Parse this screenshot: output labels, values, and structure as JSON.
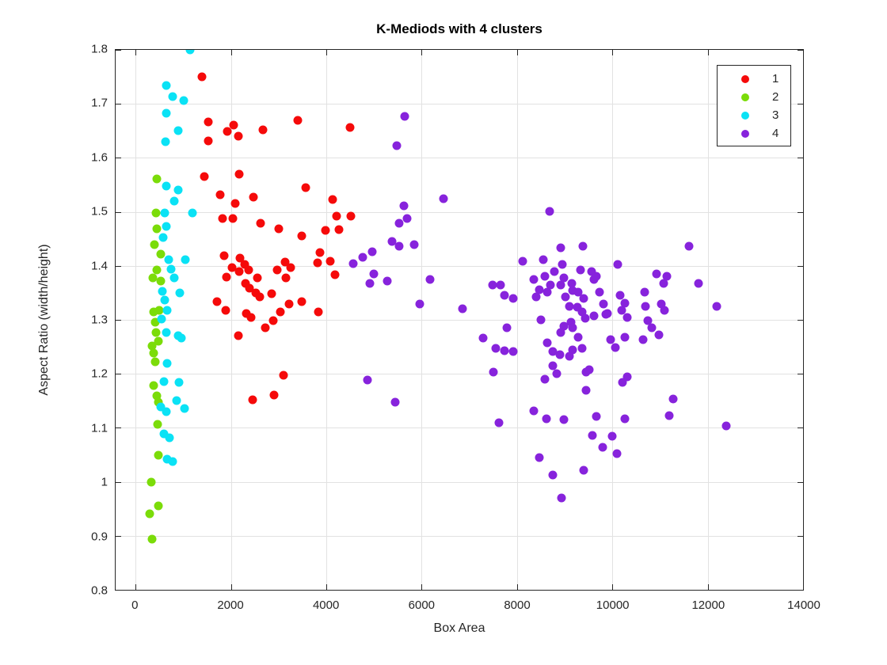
{
  "chart_data": {
    "type": "scatter",
    "title": "K-Mediods with 4 clusters",
    "xlabel": "Box Area",
    "ylabel": "Aspect Ratio (width/height)",
    "xlim": [
      -420,
      14000
    ],
    "ylim": [
      0.8,
      1.8
    ],
    "xticks": [
      0,
      2000,
      4000,
      6000,
      8000,
      10000,
      12000,
      14000
    ],
    "xtick_labels": [
      "0",
      "2000",
      "4000",
      "6000",
      "8000",
      "10000",
      "12000",
      "14000"
    ],
    "yticks": [
      0.8,
      0.9,
      1,
      1.1,
      1.2,
      1.3,
      1.4,
      1.5,
      1.6,
      1.7,
      1.8
    ],
    "ytick_labels": [
      "0.8",
      "0.9",
      "1",
      "1.1",
      "1.2",
      "1.3",
      "1.4",
      "1.5",
      "1.6",
      "1.7",
      "1.8"
    ],
    "grid": true,
    "legend_position": "top-right",
    "marker_size_px": 11,
    "series": [
      {
        "name": "1",
        "color": "#f50a0a",
        "points": [
          [
            1390,
            1.75
          ],
          [
            1520,
            1.666
          ],
          [
            1520,
            1.632
          ],
          [
            2050,
            1.661
          ],
          [
            1920,
            1.649
          ],
          [
            2150,
            1.64
          ],
          [
            2670,
            1.652
          ],
          [
            3400,
            1.67
          ],
          [
            4490,
            1.656
          ],
          [
            1440,
            1.566
          ],
          [
            2170,
            1.57
          ],
          [
            3560,
            1.545
          ],
          [
            1780,
            1.531
          ],
          [
            2470,
            1.528
          ],
          [
            2090,
            1.516
          ],
          [
            4140,
            1.523
          ],
          [
            1830,
            1.487
          ],
          [
            2040,
            1.487
          ],
          [
            4210,
            1.492
          ],
          [
            4520,
            1.492
          ],
          [
            2620,
            1.479
          ],
          [
            3000,
            1.468
          ],
          [
            3980,
            1.465
          ],
          [
            4270,
            1.467
          ],
          [
            3480,
            1.455
          ],
          [
            1860,
            1.419
          ],
          [
            2190,
            1.415
          ],
          [
            2290,
            1.403
          ],
          [
            2030,
            1.397
          ],
          [
            2170,
            1.39
          ],
          [
            2370,
            1.393
          ],
          [
            1910,
            1.379
          ],
          [
            3130,
            1.407
          ],
          [
            3250,
            1.397
          ],
          [
            2970,
            1.393
          ],
          [
            3160,
            1.378
          ],
          [
            2550,
            1.377
          ],
          [
            2300,
            1.367
          ],
          [
            2390,
            1.358
          ],
          [
            2520,
            1.35
          ],
          [
            2600,
            1.343
          ],
          [
            2850,
            1.349
          ],
          [
            3860,
            1.425
          ],
          [
            3810,
            1.406
          ],
          [
            4090,
            1.409
          ],
          [
            4180,
            1.384
          ],
          [
            1710,
            1.334
          ],
          [
            3210,
            1.33
          ],
          [
            3480,
            1.333
          ],
          [
            1890,
            1.317
          ],
          [
            2320,
            1.311
          ],
          [
            2420,
            1.305
          ],
          [
            3030,
            1.314
          ],
          [
            3830,
            1.315
          ],
          [
            2880,
            1.298
          ],
          [
            2720,
            1.285
          ],
          [
            2150,
            1.27
          ],
          [
            3110,
            1.197
          ],
          [
            2900,
            1.161
          ],
          [
            2450,
            1.152
          ]
        ]
      },
      {
        "name": "2",
        "color": "#7bdc09",
        "points": [
          [
            450,
            1.561
          ],
          [
            430,
            1.498
          ],
          [
            450,
            1.468
          ],
          [
            400,
            1.44
          ],
          [
            530,
            1.421
          ],
          [
            450,
            1.392
          ],
          [
            360,
            1.378
          ],
          [
            530,
            1.372
          ],
          [
            380,
            1.314
          ],
          [
            500,
            1.317
          ],
          [
            410,
            1.295
          ],
          [
            430,
            1.277
          ],
          [
            480,
            1.261
          ],
          [
            350,
            1.252
          ],
          [
            380,
            1.238
          ],
          [
            410,
            1.223
          ],
          [
            380,
            1.178
          ],
          [
            450,
            1.159
          ],
          [
            480,
            1.147
          ],
          [
            460,
            1.106
          ],
          [
            480,
            1.049
          ],
          [
            320,
            1.0
          ],
          [
            480,
            0.955
          ],
          [
            300,
            0.941
          ],
          [
            350,
            0.894
          ]
        ]
      },
      {
        "name": "3",
        "color": "#0ae2f5",
        "points": [
          [
            1140,
            1.8
          ],
          [
            650,
            1.734
          ],
          [
            780,
            1.713
          ],
          [
            1010,
            1.706
          ],
          [
            650,
            1.683
          ],
          [
            900,
            1.651
          ],
          [
            630,
            1.63
          ],
          [
            650,
            1.548
          ],
          [
            900,
            1.541
          ],
          [
            810,
            1.52
          ],
          [
            610,
            1.498
          ],
          [
            1190,
            1.498
          ],
          [
            650,
            1.473
          ],
          [
            580,
            1.452
          ],
          [
            700,
            1.411
          ],
          [
            1040,
            1.411
          ],
          [
            750,
            1.394
          ],
          [
            810,
            1.378
          ],
          [
            560,
            1.353
          ],
          [
            930,
            1.35
          ],
          [
            610,
            1.336
          ],
          [
            660,
            1.318
          ],
          [
            550,
            1.301
          ],
          [
            650,
            1.276
          ],
          [
            900,
            1.27
          ],
          [
            960,
            1.266
          ],
          [
            660,
            1.22
          ],
          [
            600,
            1.185
          ],
          [
            910,
            1.184
          ],
          [
            860,
            1.15
          ],
          [
            530,
            1.139
          ],
          [
            650,
            1.13
          ],
          [
            1030,
            1.136
          ],
          [
            600,
            1.089
          ],
          [
            710,
            1.081
          ],
          [
            660,
            1.042
          ],
          [
            780,
            1.037
          ]
        ]
      },
      {
        "name": "4",
        "color": "#8723dc",
        "points": [
          [
            5650,
            1.677
          ],
          [
            5470,
            1.623
          ],
          [
            6450,
            1.525
          ],
          [
            5620,
            1.511
          ],
          [
            8680,
            1.501
          ],
          [
            5700,
            1.487
          ],
          [
            5520,
            1.479
          ],
          [
            5370,
            1.445
          ],
          [
            5850,
            1.44
          ],
          [
            5520,
            1.437
          ],
          [
            4970,
            1.426
          ],
          [
            4760,
            1.416
          ],
          [
            4560,
            1.404
          ],
          [
            4990,
            1.385
          ],
          [
            5270,
            1.372
          ],
          [
            4920,
            1.368
          ],
          [
            6180,
            1.375
          ],
          [
            5960,
            1.329
          ],
          [
            6860,
            1.321
          ],
          [
            7490,
            1.365
          ],
          [
            7650,
            1.364
          ],
          [
            7740,
            1.345
          ],
          [
            7920,
            1.339
          ],
          [
            8120,
            1.409
          ],
          [
            8350,
            1.375
          ],
          [
            8400,
            1.343
          ],
          [
            8470,
            1.356
          ],
          [
            8550,
            1.412
          ],
          [
            8580,
            1.38
          ],
          [
            8630,
            1.352
          ],
          [
            8700,
            1.365
          ],
          [
            8780,
            1.39
          ],
          [
            8910,
            1.434
          ],
          [
            8950,
            1.402
          ],
          [
            8910,
            1.364
          ],
          [
            8980,
            1.378
          ],
          [
            9010,
            1.343
          ],
          [
            9100,
            1.325
          ],
          [
            9150,
            1.368
          ],
          [
            9160,
            1.354
          ],
          [
            9380,
            1.437
          ],
          [
            9330,
            1.393
          ],
          [
            9280,
            1.351
          ],
          [
            9260,
            1.324
          ],
          [
            9360,
            1.314
          ],
          [
            9390,
            1.339
          ],
          [
            9430,
            1.303
          ],
          [
            9560,
            1.39
          ],
          [
            9610,
            1.375
          ],
          [
            9660,
            1.38
          ],
          [
            9730,
            1.351
          ],
          [
            9810,
            1.329
          ],
          [
            9870,
            1.31
          ],
          [
            9610,
            1.308
          ],
          [
            9130,
            1.295
          ],
          [
            8980,
            1.288
          ],
          [
            8910,
            1.276
          ],
          [
            9160,
            1.285
          ],
          [
            9290,
            1.268
          ],
          [
            9360,
            1.247
          ],
          [
            9160,
            1.244
          ],
          [
            9100,
            1.232
          ],
          [
            8750,
            1.241
          ],
          [
            8900,
            1.236
          ],
          [
            8630,
            1.257
          ],
          [
            8500,
            1.3
          ],
          [
            8580,
            1.19
          ],
          [
            8750,
            1.215
          ],
          [
            8830,
            1.201
          ],
          [
            9440,
            1.203
          ],
          [
            9510,
            1.207
          ],
          [
            9440,
            1.17
          ],
          [
            8350,
            1.131
          ],
          [
            8610,
            1.117
          ],
          [
            8980,
            1.115
          ],
          [
            9660,
            1.121
          ],
          [
            7620,
            1.109
          ],
          [
            7500,
            1.203
          ],
          [
            7290,
            1.266
          ],
          [
            7550,
            1.247
          ],
          [
            7740,
            1.243
          ],
          [
            7920,
            1.241
          ],
          [
            7790,
            1.285
          ],
          [
            11600,
            1.436
          ],
          [
            10110,
            1.402
          ],
          [
            10930,
            1.385
          ],
          [
            11150,
            1.38
          ],
          [
            11070,
            1.368
          ],
          [
            11800,
            1.368
          ],
          [
            10160,
            1.346
          ],
          [
            10670,
            1.351
          ],
          [
            10270,
            1.331
          ],
          [
            10190,
            1.318
          ],
          [
            9900,
            1.312
          ],
          [
            10320,
            1.305
          ],
          [
            10700,
            1.325
          ],
          [
            11020,
            1.33
          ],
          [
            11100,
            1.318
          ],
          [
            12190,
            1.325
          ],
          [
            10740,
            1.299
          ],
          [
            10830,
            1.285
          ],
          [
            10970,
            1.272
          ],
          [
            10260,
            1.268
          ],
          [
            9970,
            1.263
          ],
          [
            10650,
            1.263
          ],
          [
            10060,
            1.248
          ],
          [
            10320,
            1.195
          ],
          [
            10210,
            1.184
          ],
          [
            11280,
            1.153
          ],
          [
            11200,
            1.122
          ],
          [
            10270,
            1.116
          ],
          [
            12390,
            1.104
          ],
          [
            10090,
            1.052
          ],
          [
            9990,
            1.085
          ],
          [
            8470,
            1.045
          ],
          [
            8750,
            1.012
          ],
          [
            9390,
            1.022
          ],
          [
            8930,
            0.97
          ],
          [
            9580,
            1.086
          ],
          [
            9790,
            1.064
          ],
          [
            4870,
            1.188
          ],
          [
            5450,
            1.147
          ]
        ]
      }
    ]
  }
}
